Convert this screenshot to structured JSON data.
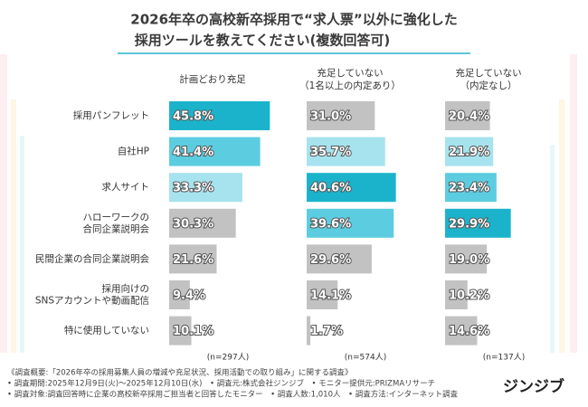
{
  "chart_data": {
    "type": "bar",
    "orientation": "horizontal",
    "title": "2026年卒の高校新卒採用で“求人票”以外に強化した",
    "subtitle": "採用ツールを教えてください(複数回答可)",
    "categories": [
      "採用パンフレット",
      "自社HP",
      "求人サイト",
      "ハローワークの\n合同企業説明会",
      "民間企業の合同企業説明会",
      "採用向けの\nSNSアカウントや動画配信",
      "特に使用していない"
    ],
    "xlim": [
      0,
      50
    ],
    "series": [
      {
        "name": "計画どおり充足",
        "sample": "(n=297人)",
        "values": [
          45.8,
          41.4,
          33.3,
          30.3,
          21.6,
          9.4,
          10.1
        ],
        "value_labels": [
          "45.8%",
          "41.4%",
          "33.3%",
          "30.3%",
          "21.6%",
          "9.4%",
          "10.1%"
        ],
        "colors": [
          "#1bb3cb",
          "#5ccde0",
          "#a6e3ee",
          "#c2c2c2",
          "#c2c2c2",
          "#c2c2c2",
          "#c2c2c2"
        ]
      },
      {
        "name": "充足していない\n（1名以上の内定あり）",
        "sample": "(n=574人)",
        "values": [
          31.0,
          35.7,
          40.6,
          39.6,
          29.6,
          14.1,
          1.7
        ],
        "value_labels": [
          "31.0%",
          "35.7%",
          "40.6%",
          "39.6%",
          "29.6%",
          "14.1%",
          "1.7%"
        ],
        "colors": [
          "#c2c2c2",
          "#a6e3ee",
          "#1bb3cb",
          "#5ccde0",
          "#c2c2c2",
          "#c2c2c2",
          "#c2c2c2"
        ]
      },
      {
        "name": "充足していない\n（内定なし）",
        "sample": "(n=137人)",
        "values": [
          20.4,
          21.9,
          23.4,
          29.9,
          19.0,
          10.2,
          14.6
        ],
        "value_labels": [
          "20.4%",
          "21.9%",
          "23.4%",
          "29.9%",
          "19.0%",
          "10.2%",
          "14.6%"
        ],
        "colors": [
          "#c2c2c2",
          "#a6e3ee",
          "#5ccde0",
          "#1bb3cb",
          "#c2c2c2",
          "#c2c2c2",
          "#c2c2c2"
        ]
      }
    ]
  },
  "notes": [
    "《調査概要:「2026年卒の採用募集人員の増減や充足状況、採用活動での取り組み」に関する調査》",
    "• 調査期間:2025年12月9日(火)〜2025年12月10日(水)　• 調査元:株式会社ジンジブ　• モニター提供元:PRIZMAリサーチ",
    "• 調査対象:調査回答時に企業の高校新卒採用ご担当者と回答したモニター　• 調査人数:1,010人　• 調査方法:インターネット調査"
  ],
  "logo": "ジンジブ"
}
